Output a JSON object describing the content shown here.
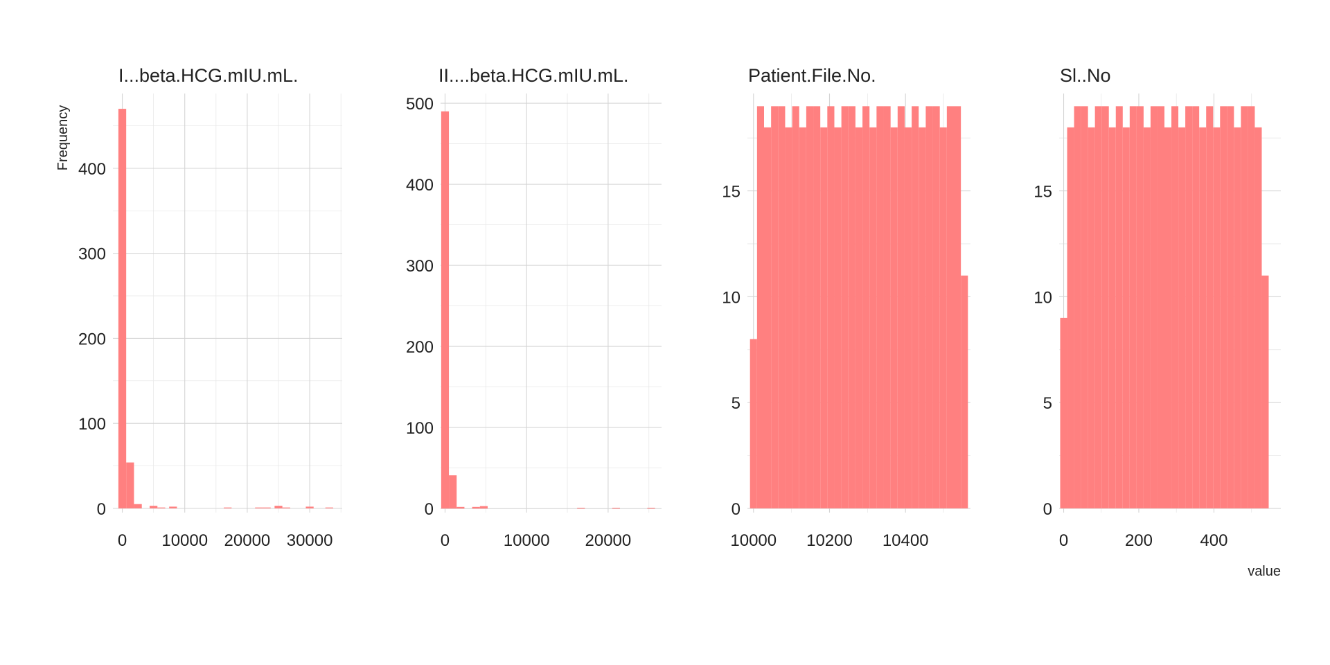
{
  "chart_data": {
    "type": "bar",
    "kind": "faceted histogram",
    "ylabel": "Frequency",
    "xlabel": "value",
    "bar_color": "#FF8080",
    "bar_opacity": 0.5,
    "grid": true,
    "legend": "none",
    "facets": [
      {
        "title": "I...beta.HCG.mIU.mL.",
        "binwidth": 1250,
        "x_ticks": [
          0,
          10000,
          20000,
          30000
        ],
        "x_tick_labels": [
          "0",
          "10000",
          "20000",
          "30000"
        ],
        "y_ticks": [
          0,
          100,
          200,
          300,
          400
        ],
        "y_tick_labels": [
          "0",
          "100",
          "200",
          "300",
          "400"
        ],
        "xlim": [
          -1500,
          35200
        ],
        "ylim": [
          -5,
          488
        ],
        "bins": [
          {
            "x0": -625,
            "x1": 625,
            "count": 470
          },
          {
            "x0": 625,
            "x1": 1875,
            "count": 54
          },
          {
            "x0": 1875,
            "x1": 3125,
            "count": 5
          },
          {
            "x0": 4375,
            "x1": 5625,
            "count": 3
          },
          {
            "x0": 5625,
            "x1": 6875,
            "count": 1
          },
          {
            "x0": 7500,
            "x1": 8750,
            "count": 2
          },
          {
            "x0": 16250,
            "x1": 17500,
            "count": 1
          },
          {
            "x0": 21250,
            "x1": 22500,
            "count": 1
          },
          {
            "x0": 22500,
            "x1": 23750,
            "count": 1
          },
          {
            "x0": 24375,
            "x1": 25625,
            "count": 3
          },
          {
            "x0": 25625,
            "x1": 26875,
            "count": 1
          },
          {
            "x0": 29375,
            "x1": 30625,
            "count": 2
          },
          {
            "x0": 32500,
            "x1": 33750,
            "count": 1
          }
        ]
      },
      {
        "title": "II....beta.HCG.mIU.mL.",
        "binwidth": 950,
        "x_ticks": [
          0,
          10000,
          20000
        ],
        "x_tick_labels": [
          "0",
          "10000",
          "20000"
        ],
        "y_ticks": [
          0,
          100,
          200,
          300,
          400,
          500
        ],
        "y_tick_labels": [
          "0",
          "100",
          "200",
          "300",
          "400",
          "500"
        ],
        "xlim": [
          -550,
          26550
        ],
        "ylim": [
          -5,
          512
        ],
        "bins": [
          {
            "x0": -475,
            "x1": 475,
            "count": 490
          },
          {
            "x0": 475,
            "x1": 1425,
            "count": 41
          },
          {
            "x0": 1425,
            "x1": 2375,
            "count": 2
          },
          {
            "x0": 3325,
            "x1": 4275,
            "count": 2
          },
          {
            "x0": 4275,
            "x1": 5225,
            "count": 3
          },
          {
            "x0": 16200,
            "x1": 17150,
            "count": 1
          },
          {
            "x0": 20500,
            "x1": 21450,
            "count": 1
          },
          {
            "x0": 24800,
            "x1": 25750,
            "count": 1
          }
        ]
      },
      {
        "title": "Patient.File.No.",
        "binwidth": 18.5,
        "x_ticks": [
          10000,
          10200,
          10400
        ],
        "x_tick_labels": [
          "10000",
          "10200",
          "10400"
        ],
        "y_ticks": [
          0,
          5,
          10,
          15
        ],
        "y_tick_labels": [
          "0",
          "5",
          "10",
          "15"
        ],
        "xlim": [
          9984,
          10571
        ],
        "ylim": [
          -0.2,
          19.6
        ],
        "bins": [
          {
            "x0": 9990.75,
            "x1": 10009.25,
            "count": 8
          },
          {
            "x0": 10009.25,
            "x1": 10027.75,
            "count": 19
          },
          {
            "x0": 10027.75,
            "x1": 10046.25,
            "count": 18
          },
          {
            "x0": 10046.25,
            "x1": 10064.75,
            "count": 19
          },
          {
            "x0": 10064.75,
            "x1": 10083.25,
            "count": 19
          },
          {
            "x0": 10083.25,
            "x1": 10101.75,
            "count": 18
          },
          {
            "x0": 10101.75,
            "x1": 10120.25,
            "count": 19
          },
          {
            "x0": 10120.25,
            "x1": 10138.75,
            "count": 18
          },
          {
            "x0": 10138.75,
            "x1": 10157.25,
            "count": 19
          },
          {
            "x0": 10157.25,
            "x1": 10175.75,
            "count": 19
          },
          {
            "x0": 10175.75,
            "x1": 10194.25,
            "count": 18
          },
          {
            "x0": 10194.25,
            "x1": 10212.75,
            "count": 19
          },
          {
            "x0": 10212.75,
            "x1": 10231.25,
            "count": 18
          },
          {
            "x0": 10231.25,
            "x1": 10249.75,
            "count": 19
          },
          {
            "x0": 10249.75,
            "x1": 10268.25,
            "count": 19
          },
          {
            "x0": 10268.25,
            "x1": 10286.75,
            "count": 18
          },
          {
            "x0": 10286.75,
            "x1": 10305.25,
            "count": 19
          },
          {
            "x0": 10305.25,
            "x1": 10323.75,
            "count": 18
          },
          {
            "x0": 10323.75,
            "x1": 10342.25,
            "count": 19
          },
          {
            "x0": 10342.25,
            "x1": 10360.75,
            "count": 19
          },
          {
            "x0": 10360.75,
            "x1": 10379.25,
            "count": 18
          },
          {
            "x0": 10379.25,
            "x1": 10397.75,
            "count": 19
          },
          {
            "x0": 10397.75,
            "x1": 10416.25,
            "count": 18
          },
          {
            "x0": 10416.25,
            "x1": 10434.75,
            "count": 19
          },
          {
            "x0": 10434.75,
            "x1": 10453.25,
            "count": 18
          },
          {
            "x0": 10453.25,
            "x1": 10471.75,
            "count": 19
          },
          {
            "x0": 10471.75,
            "x1": 10490.25,
            "count": 19
          },
          {
            "x0": 10490.25,
            "x1": 10508.75,
            "count": 18
          },
          {
            "x0": 10508.75,
            "x1": 10527.25,
            "count": 19
          },
          {
            "x0": 10527.25,
            "x1": 10545.75,
            "count": 19
          },
          {
            "x0": 10545.75,
            "x1": 10564.25,
            "count": 11
          }
        ]
      },
      {
        "title": "Sl..No",
        "binwidth": 18.5,
        "x_ticks": [
          0,
          200,
          400
        ],
        "x_tick_labels": [
          "0",
          "200",
          "400"
        ],
        "y_ticks": [
          0,
          5,
          10,
          15
        ],
        "y_tick_labels": [
          "0",
          "5",
          "10",
          "15"
        ],
        "xlim": [
          -12,
          578
        ],
        "ylim": [
          -0.2,
          19.6
        ],
        "bins": [
          {
            "x0": -9.25,
            "x1": 9.25,
            "count": 9
          },
          {
            "x0": 9.25,
            "x1": 27.75,
            "count": 18
          },
          {
            "x0": 27.75,
            "x1": 46.25,
            "count": 19
          },
          {
            "x0": 46.25,
            "x1": 64.75,
            "count": 19
          },
          {
            "x0": 64.75,
            "x1": 83.25,
            "count": 18
          },
          {
            "x0": 83.25,
            "x1": 101.75,
            "count": 19
          },
          {
            "x0": 101.75,
            "x1": 120.25,
            "count": 19
          },
          {
            "x0": 120.25,
            "x1": 138.75,
            "count": 18
          },
          {
            "x0": 138.75,
            "x1": 157.25,
            "count": 19
          },
          {
            "x0": 157.25,
            "x1": 175.75,
            "count": 18
          },
          {
            "x0": 175.75,
            "x1": 194.25,
            "count": 19
          },
          {
            "x0": 194.25,
            "x1": 212.75,
            "count": 19
          },
          {
            "x0": 212.75,
            "x1": 231.25,
            "count": 18
          },
          {
            "x0": 231.25,
            "x1": 249.75,
            "count": 19
          },
          {
            "x0": 249.75,
            "x1": 268.25,
            "count": 19
          },
          {
            "x0": 268.25,
            "x1": 286.75,
            "count": 18
          },
          {
            "x0": 286.75,
            "x1": 305.25,
            "count": 19
          },
          {
            "x0": 305.25,
            "x1": 323.75,
            "count": 18
          },
          {
            "x0": 323.75,
            "x1": 342.25,
            "count": 19
          },
          {
            "x0": 342.25,
            "x1": 360.75,
            "count": 19
          },
          {
            "x0": 360.75,
            "x1": 379.25,
            "count": 18
          },
          {
            "x0": 379.25,
            "x1": 397.75,
            "count": 19
          },
          {
            "x0": 397.75,
            "x1": 416.25,
            "count": 18
          },
          {
            "x0": 416.25,
            "x1": 434.75,
            "count": 19
          },
          {
            "x0": 434.75,
            "x1": 453.25,
            "count": 19
          },
          {
            "x0": 453.25,
            "x1": 471.75,
            "count": 18
          },
          {
            "x0": 471.75,
            "x1": 490.25,
            "count": 19
          },
          {
            "x0": 490.25,
            "x1": 508.75,
            "count": 19
          },
          {
            "x0": 508.75,
            "x1": 527.25,
            "count": 18
          },
          {
            "x0": 527.25,
            "x1": 545.75,
            "count": 11
          }
        ]
      }
    ]
  }
}
